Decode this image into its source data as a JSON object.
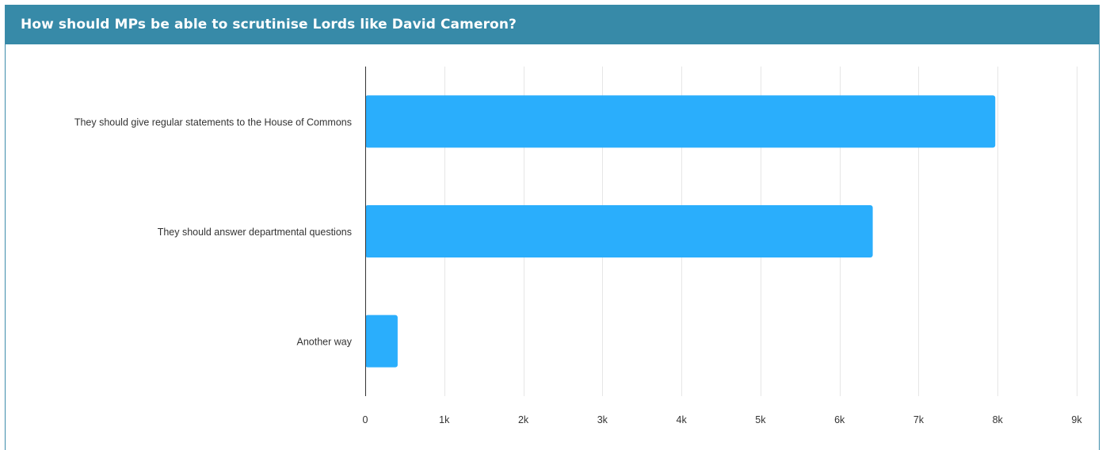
{
  "chart_data": {
    "type": "bar",
    "orientation": "horizontal",
    "title": "How should MPs be able to scrutinise Lords like David Cameron?",
    "categories": [
      "They should give regular statements to the House of Commons",
      "They should answer departmental questions",
      "Another way"
    ],
    "values": [
      7970,
      6420,
      410
    ],
    "xlim": [
      0,
      9000
    ],
    "x_ticks": [
      0,
      1000,
      2000,
      3000,
      4000,
      5000,
      6000,
      7000,
      8000,
      9000
    ],
    "x_tick_labels": [
      "0",
      "1k",
      "2k",
      "3k",
      "4k",
      "5k",
      "6k",
      "7k",
      "8k",
      "9k"
    ],
    "xlabel": "",
    "ylabel": "",
    "grid": true,
    "legend": "none"
  },
  "colors": {
    "header": "#378aa8",
    "bar": "#2aaefc",
    "grid": "#e6e6e6",
    "axis": "#333333"
  }
}
